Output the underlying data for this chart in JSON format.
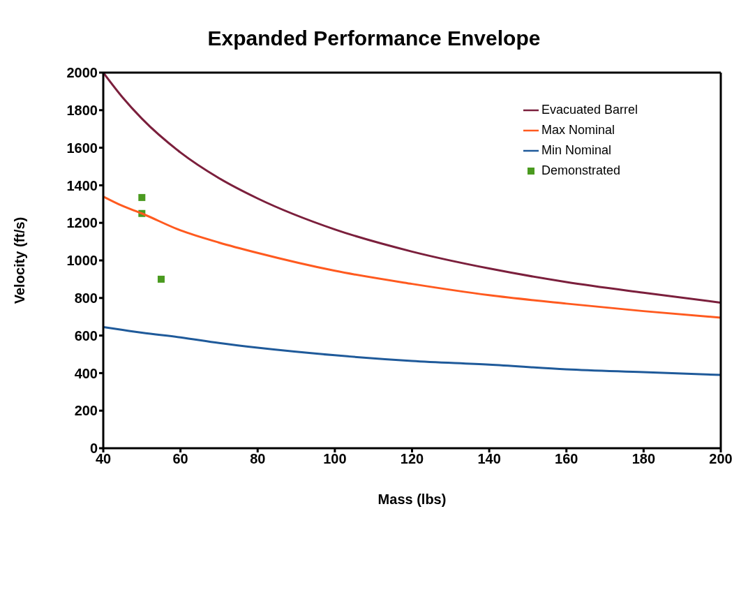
{
  "chart_data": {
    "type": "line",
    "title": "Expanded Performance Envelope",
    "xlabel": "Mass (lbs)",
    "ylabel": "Velocity (ft/s)",
    "series": [
      {
        "name": "Evacuated Barrel",
        "color": "#7b1f3c",
        "marker": "none",
        "x": [
          40,
          45,
          50,
          60,
          70,
          80,
          100,
          120,
          140,
          160,
          180,
          200
        ],
        "values": [
          2000,
          1868,
          1755,
          1575,
          1438,
          1330,
          1165,
          1047,
          957,
          885,
          828,
          775
        ]
      },
      {
        "name": "Max Nominal",
        "color": "#ff5a1f",
        "marker": "none",
        "x": [
          40,
          45,
          50,
          60,
          70,
          80,
          100,
          120,
          140,
          160,
          180,
          200
        ],
        "values": [
          1340,
          1290,
          1250,
          1160,
          1095,
          1040,
          945,
          875,
          815,
          770,
          730,
          695
        ]
      },
      {
        "name": "Min Nominal",
        "color": "#1f5a9a",
        "marker": "none",
        "x": [
          40,
          45,
          50,
          60,
          70,
          80,
          100,
          120,
          140,
          160,
          180,
          200
        ],
        "values": [
          645,
          630,
          615,
          590,
          560,
          535,
          495,
          465,
          445,
          420,
          405,
          390
        ]
      },
      {
        "name": "Demonstrated",
        "type": "scatter",
        "color": "#4a9a1f",
        "marker": "square",
        "x": [
          50,
          50,
          55
        ],
        "values": [
          1335,
          1250,
          900
        ]
      }
    ],
    "xlim": [
      40,
      200
    ],
    "xticks": [
      40,
      60,
      80,
      100,
      120,
      140,
      160,
      180,
      200
    ],
    "ylim": [
      0,
      2000
    ],
    "yticks": [
      0,
      200,
      400,
      600,
      800,
      1000,
      1200,
      1400,
      1600,
      1800,
      2000
    ],
    "grid": false,
    "legend": "top right",
    "line_style": "solid"
  }
}
